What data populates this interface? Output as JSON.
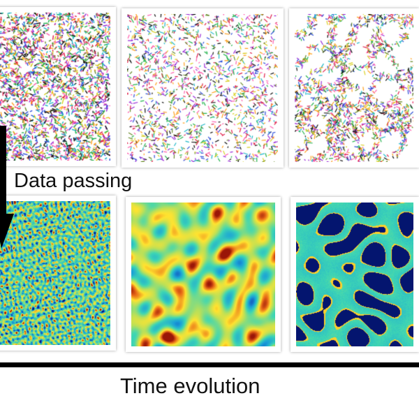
{
  "labels": {
    "data_passing": "Data passing",
    "time_evolution": "Time evolution"
  },
  "rows": [
    {
      "name": "particle-snapshots",
      "panels": [
        {
          "stage": "early",
          "style": "dense-network"
        },
        {
          "stage": "middle",
          "style": "sparse-network"
        },
        {
          "stage": "late",
          "style": "cellular-network"
        }
      ]
    },
    {
      "name": "density-fields",
      "panels": [
        {
          "stage": "early",
          "style": "noise-field"
        },
        {
          "stage": "middle",
          "style": "smooth-field"
        },
        {
          "stage": "late",
          "style": "void-field"
        }
      ]
    }
  ],
  "colors": {
    "arrow": "#000000",
    "time_bar": "#000000",
    "field_low": "#0a1a7a",
    "field_mid": "#3ed6b4",
    "field_high": "#ffe330",
    "field_peak": "#c2300e"
  }
}
